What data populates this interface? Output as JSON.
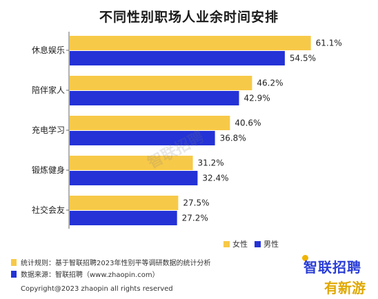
{
  "chart_data": {
    "type": "bar",
    "orientation": "horizontal",
    "title": "不同性别职场人业余时间安排",
    "categories": [
      "休息娱乐",
      "陪伴家人",
      "充电学习",
      "锻炼健身",
      "社交会友"
    ],
    "series": [
      {
        "name": "女性",
        "values": [
          61.1,
          46.2,
          40.6,
          31.2,
          27.5
        ],
        "labels": [
          "61.1%",
          "46.2%",
          "40.6%",
          "31.2%",
          "27.5%"
        ],
        "color": "#f7c948"
      },
      {
        "name": "男性",
        "values": [
          54.5,
          42.9,
          36.8,
          32.4,
          27.2
        ],
        "labels": [
          "54.5%",
          "42.9%",
          "36.8%",
          "32.4%",
          "27.2%"
        ],
        "color": "#2432d6"
      }
    ],
    "xlim": [
      0,
      65
    ],
    "grid": false,
    "legend_position": "bottom-right"
  },
  "notes": {
    "rule": "统计规则：基于智联招聘2023年性别平等调研数据的统计分析",
    "source": "数据来源：智联招聘（www.zhaopin.com）",
    "copyright": "Copyright@2023 zhaopin all rights reserved"
  },
  "brand": "智联招聘",
  "watermark": "智联招聘",
  "corner_mark": "有新游",
  "colors": {
    "female": "#f7c948",
    "male": "#2432d6",
    "brand": "#2a3dd6"
  }
}
